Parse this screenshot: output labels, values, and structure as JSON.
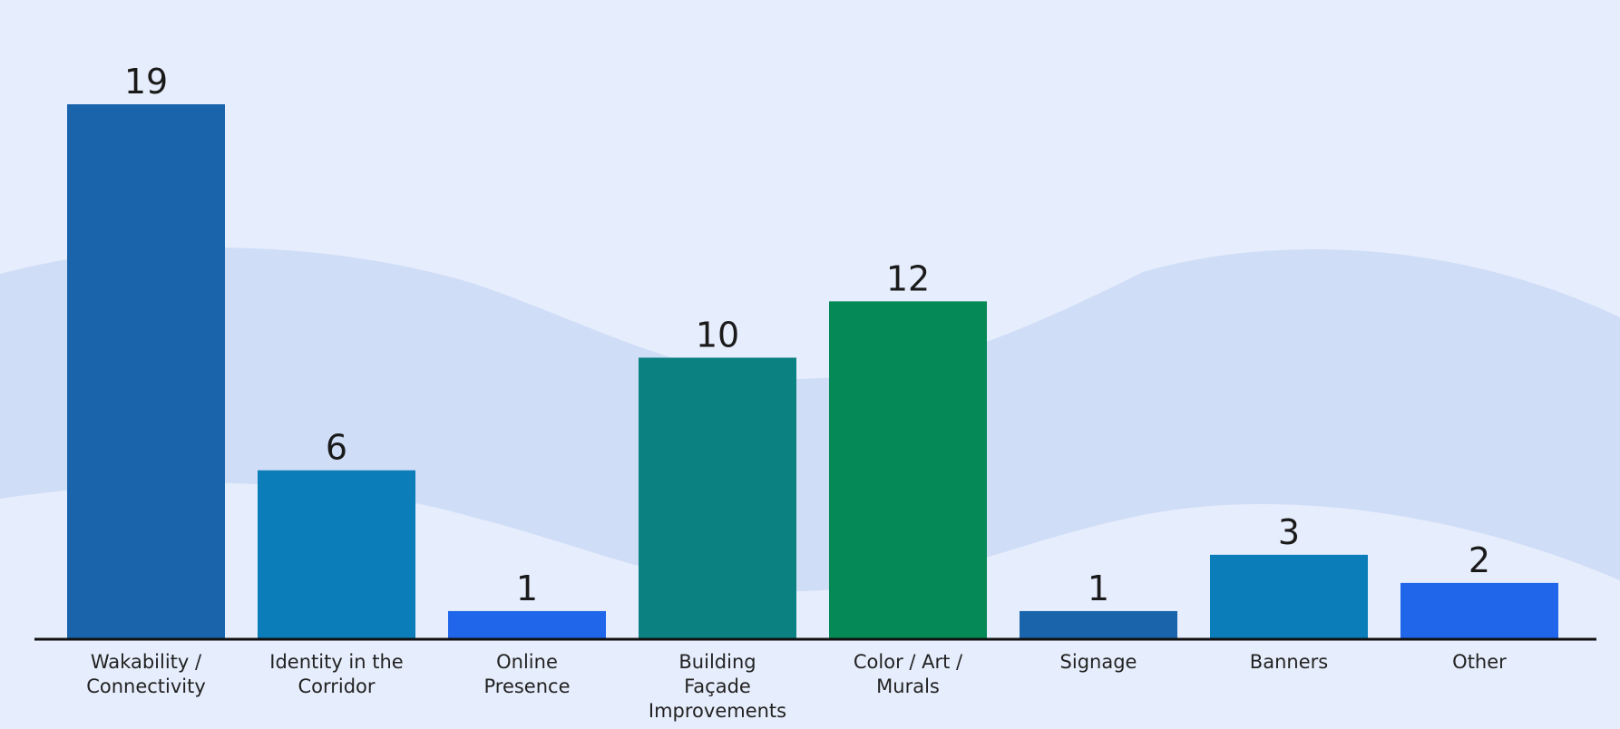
{
  "chart_data": {
    "type": "bar",
    "title": "",
    "xlabel": "",
    "ylabel": "",
    "ylim": [
      0,
      19
    ],
    "grid": false,
    "categories": [
      "Wakability /\nConnectivity",
      "Identity in the\nCorridor",
      "Online\nPresence",
      "Building\nFaçade\nImprovements",
      "Color / Art /\nMurals",
      "Signage",
      "Banners",
      "Other"
    ],
    "values": [
      19,
      6,
      1,
      10,
      12,
      1,
      3,
      2
    ],
    "value_labels": [
      "19",
      "6",
      "1",
      "10",
      "12",
      "1",
      "3",
      "2"
    ],
    "bar_colors": [
      "#1a64ac",
      "#0b7db9",
      "#1f66ea",
      "#0b8181",
      "#058a57",
      "#1a64ac",
      "#0b7db9",
      "#1f66ea"
    ]
  },
  "colors": {
    "background": "#e6edfc",
    "wave": "#cfddf7",
    "axis": "#111111"
  }
}
